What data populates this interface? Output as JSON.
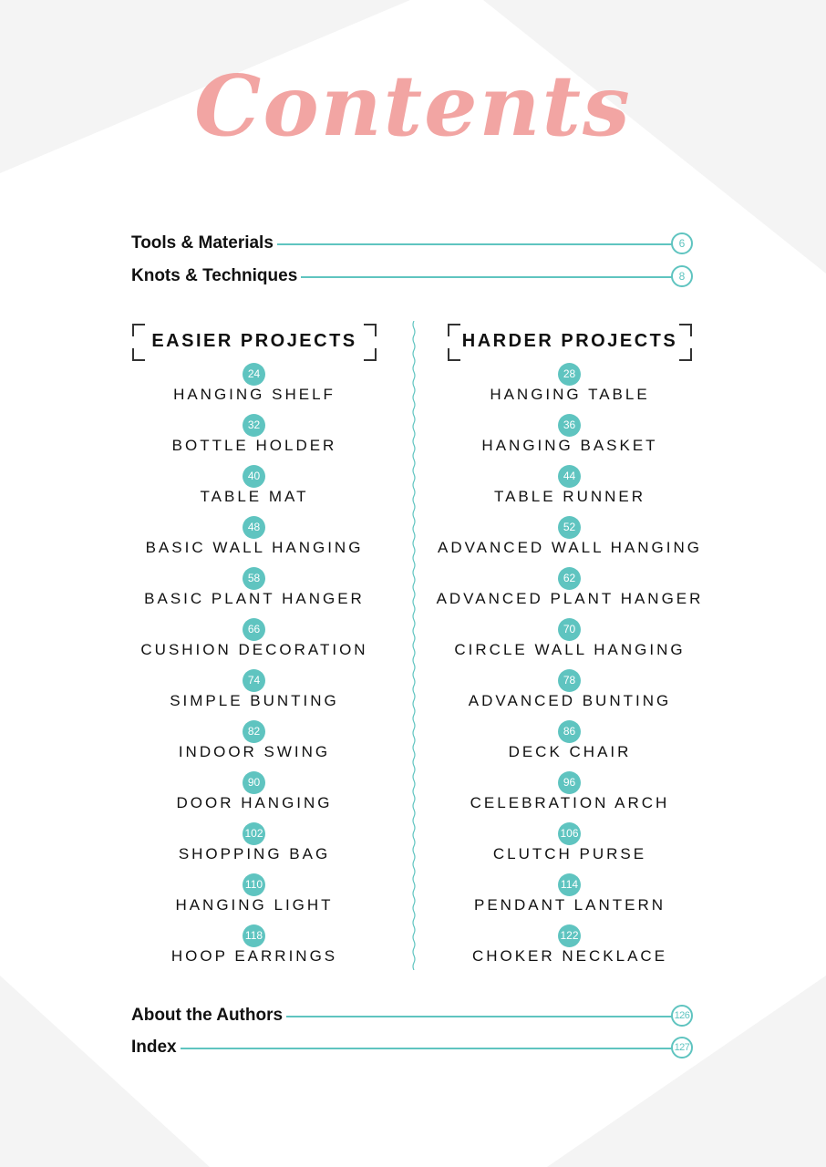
{
  "title": "Contents",
  "top_entries": [
    {
      "label": "Tools & Materials",
      "page": "6"
    },
    {
      "label": "Knots & Techniques",
      "page": "8"
    }
  ],
  "easier": {
    "heading": "EASIER PROJECTS",
    "items": [
      {
        "page": "24",
        "name": "HANGING SHELF"
      },
      {
        "page": "32",
        "name": "BOTTLE HOLDER"
      },
      {
        "page": "40",
        "name": "TABLE MAT"
      },
      {
        "page": "48",
        "name": "BASIC WALL HANGING"
      },
      {
        "page": "58",
        "name": "BASIC PLANT HANGER"
      },
      {
        "page": "66",
        "name": "CUSHION DECORATION"
      },
      {
        "page": "74",
        "name": "SIMPLE BUNTING"
      },
      {
        "page": "82",
        "name": "INDOOR SWING"
      },
      {
        "page": "90",
        "name": "DOOR HANGING"
      },
      {
        "page": "102",
        "name": "SHOPPING BAG"
      },
      {
        "page": "110",
        "name": "HANGING LIGHT"
      },
      {
        "page": "118",
        "name": "HOOP EARRINGS"
      }
    ]
  },
  "harder": {
    "heading": "HARDER PROJECTS",
    "items": [
      {
        "page": "28",
        "name": "HANGING TABLE"
      },
      {
        "page": "36",
        "name": "HANGING BASKET"
      },
      {
        "page": "44",
        "name": "TABLE RUNNER"
      },
      {
        "page": "52",
        "name": "ADVANCED WALL HANGING"
      },
      {
        "page": "62",
        "name": "ADVANCED PLANT HANGER"
      },
      {
        "page": "70",
        "name": "CIRCLE WALL HANGING"
      },
      {
        "page": "78",
        "name": "ADVANCED BUNTING"
      },
      {
        "page": "86",
        "name": "DECK CHAIR"
      },
      {
        "page": "96",
        "name": "CELEBRATION ARCH"
      },
      {
        "page": "106",
        "name": "CLUTCH PURSE"
      },
      {
        "page": "114",
        "name": "PENDANT LANTERN"
      },
      {
        "page": "122",
        "name": "CHOKER NECKLACE"
      }
    ]
  },
  "bottom_entries": [
    {
      "label": "About the Authors",
      "page": "126"
    },
    {
      "label": "Index",
      "page": "127"
    }
  ],
  "colors": {
    "accent_teal": "#5fc4c0",
    "title_pink": "#f2a5a3",
    "background_shape": "#f4f4f4"
  }
}
